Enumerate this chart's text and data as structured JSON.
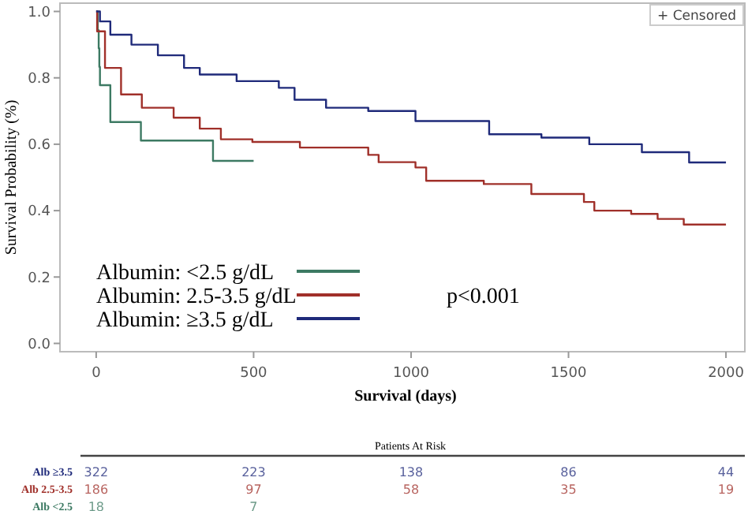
{
  "chart_data": {
    "type": "step",
    "xlabel": "Survival (days)",
    "ylabel": "Survival Probability (%)",
    "xlim": [
      -115,
      2060
    ],
    "ylim": [
      -0.025,
      1.025
    ],
    "xticks": [
      0,
      500,
      1000,
      1500,
      2000
    ],
    "yticks": [
      {
        "value": 0,
        "label": "0.0"
      },
      0.2,
      0.4,
      0.6,
      0.8,
      {
        "value": 1,
        "label": "1.0"
      }
    ],
    "grid": false,
    "legend": "bottom left",
    "line_style": "solid",
    "series": [
      {
        "name": "Albumin: <2.5 g/dL",
        "color": "#3d7a63",
        "x": [
          0,
          5,
          8,
          10,
          12,
          45,
          142,
          371,
          500
        ],
        "values": [
          1.0,
          0.944,
          0.889,
          0.833,
          0.778,
          0.667,
          0.611,
          0.55,
          0.55
        ]
      },
      {
        "name": "Albumin: 2.5-3.5 g/dL",
        "color": "#a0302a",
        "x": [
          0,
          3,
          28,
          79,
          145,
          246,
          329,
          396,
          496,
          647,
          864,
          897,
          1014,
          1048,
          1231,
          1382,
          1549,
          1582,
          1699,
          1783,
          1866,
          2000
        ],
        "values": [
          1.0,
          0.94,
          0.83,
          0.75,
          0.71,
          0.68,
          0.647,
          0.615,
          0.607,
          0.59,
          0.568,
          0.546,
          0.53,
          0.49,
          0.48,
          0.45,
          0.426,
          0.4,
          0.39,
          0.375,
          0.358,
          0.358
        ]
      },
      {
        "name": "Albumin: ≥3.5 g/dL",
        "color": "#1f2a7a",
        "x": [
          0,
          12,
          45,
          112,
          196,
          279,
          329,
          446,
          580,
          630,
          730,
          864,
          1014,
          1248,
          1414,
          1566,
          1733,
          1883,
          2000
        ],
        "values": [
          1.0,
          0.97,
          0.93,
          0.9,
          0.868,
          0.83,
          0.81,
          0.79,
          0.77,
          0.734,
          0.71,
          0.7,
          0.67,
          0.63,
          0.62,
          0.6,
          0.576,
          0.545,
          0.545
        ]
      }
    ],
    "annotations": [
      "p<0.001",
      "+ Censored",
      "Patients At Risk",
      "Alb ≥3.5",
      "Alb 2.5-3.5",
      "Alb <2.5",
      "322",
      "223",
      "138",
      "86",
      "44",
      "186",
      "97",
      "58",
      "35",
      "19",
      "18",
      "7"
    ]
  }
}
